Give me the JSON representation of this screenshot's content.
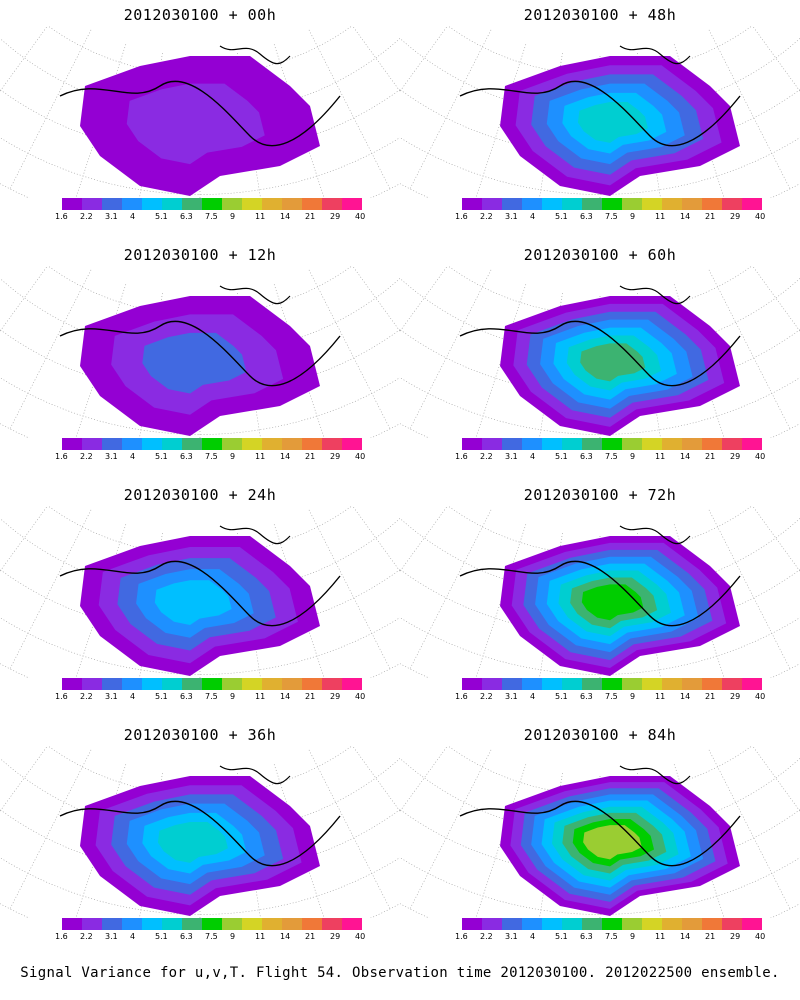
{
  "panels": [
    {
      "title": "2012030100 + 00h",
      "intensity": 0.15
    },
    {
      "title": "2012030100 + 48h",
      "intensity": 0.55
    },
    {
      "title": "2012030100 + 12h",
      "intensity": 0.3
    },
    {
      "title": "2012030100 + 60h",
      "intensity": 0.62
    },
    {
      "title": "2012030100 + 24h",
      "intensity": 0.42
    },
    {
      "title": "2012030100 + 72h",
      "intensity": 0.7
    },
    {
      "title": "2012030100 + 36h",
      "intensity": 0.5
    },
    {
      "title": "2012030100 + 84h",
      "intensity": 0.78
    }
  ],
  "colorbar": {
    "labels": [
      "1.6",
      "2.2",
      "3.1",
      "4",
      "5.1",
      "6.3",
      "7.5",
      "9",
      "11",
      "14",
      "21",
      "29",
      "40"
    ],
    "colors": [
      "#9400d3",
      "#8a2be2",
      "#4169e1",
      "#1e90ff",
      "#00bfff",
      "#00ced1",
      "#3cb371",
      "#00cd00",
      "#9acd32",
      "#d4d425",
      "#e0b030",
      "#e39b3a",
      "#f07838",
      "#ee4060",
      "#ff1493"
    ]
  },
  "footer": "Signal Variance for u,v,T. Flight 54. Observation time 2012030100. 2012022500 ensemble."
}
